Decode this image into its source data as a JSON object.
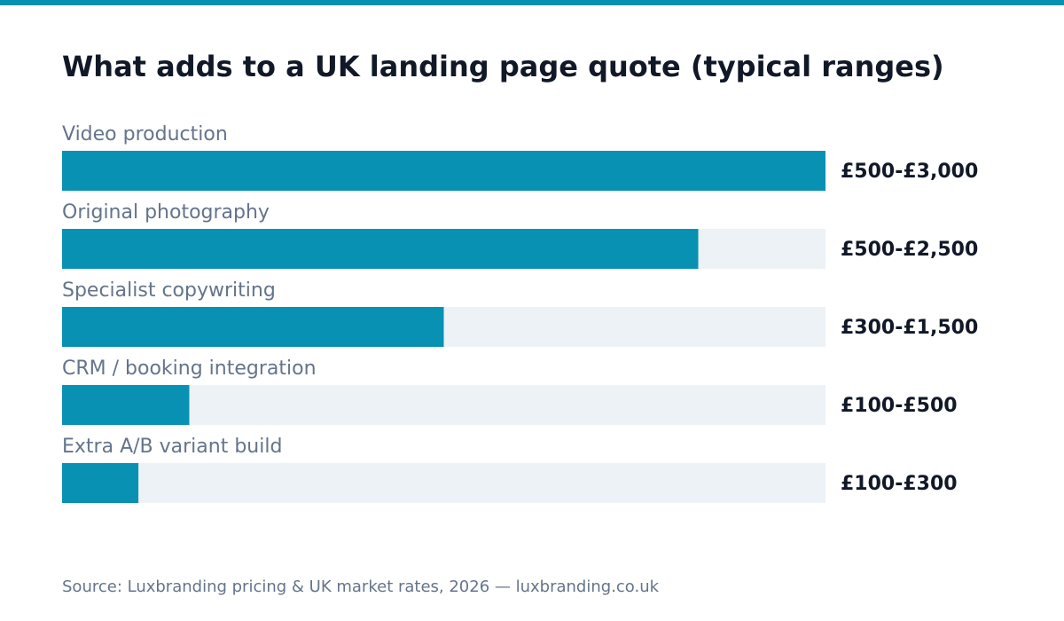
{
  "title": "What adds to a UK landing page quote (typical ranges)",
  "source": "Source: Luxbranding pricing & UK market rates, 2026 — luxbranding.co.uk",
  "colors": {
    "accent": "#0891b2",
    "track": "#edf2f7",
    "label": "#64748b",
    "title": "#111827",
    "value": "#111827"
  },
  "chart_data": {
    "type": "bar",
    "orientation": "horizontal",
    "title": "What adds to a UK landing page quote (typical ranges)",
    "categories": [
      "Video production",
      "Original photography",
      "Specialist copywriting",
      "CRM / booking integration",
      "Extra A/B variant build"
    ],
    "values": [
      3000,
      2500,
      1500,
      500,
      300
    ],
    "value_labels": [
      "£500-£3,000",
      "£500-£2,500",
      "£300-£1,500",
      "£100-£500",
      "£100-£300"
    ],
    "xlim": [
      0,
      3000
    ],
    "grid": false,
    "legend": "none"
  }
}
